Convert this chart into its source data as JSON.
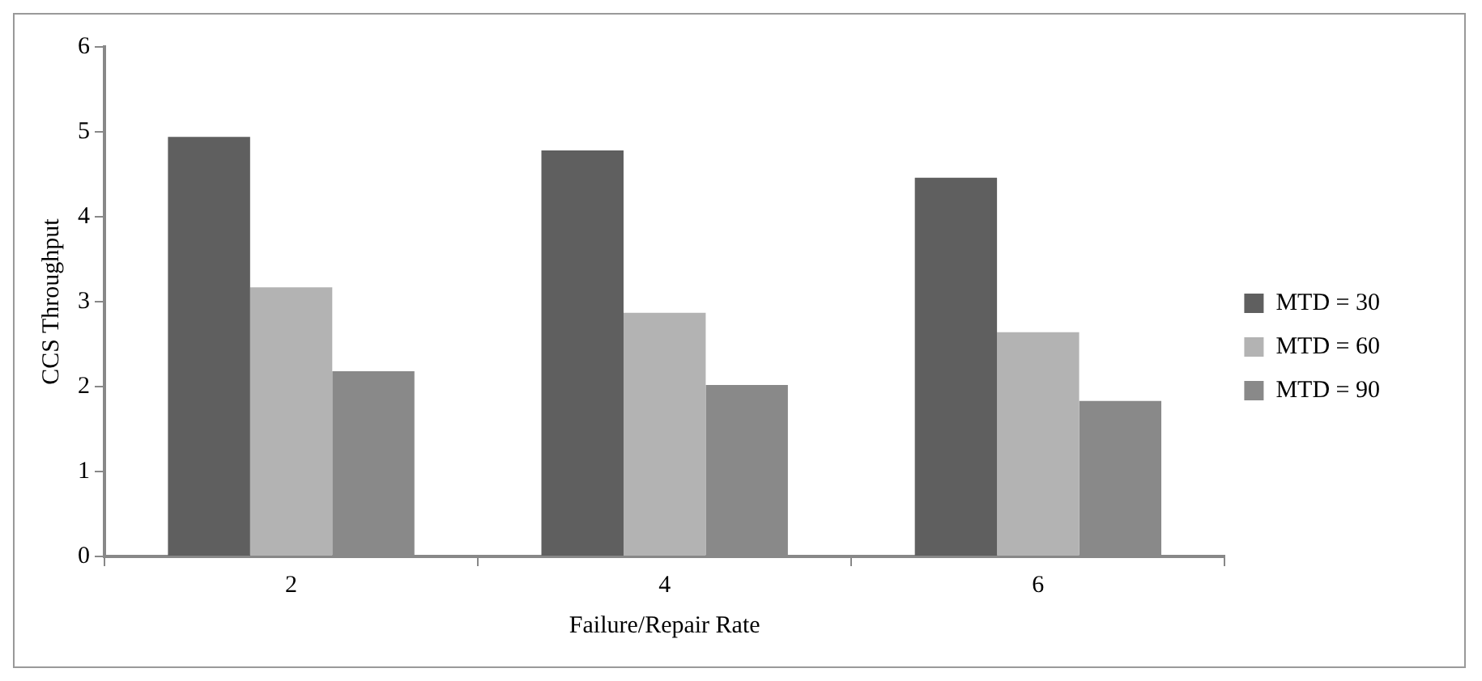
{
  "chart_data": {
    "type": "bar",
    "xlabel": "Failure/Repair Rate",
    "ylabel": "CCS Throughput",
    "categories": [
      "2",
      "4",
      "6"
    ],
    "series": [
      {
        "name": "MTD = 30",
        "color": "#5f5f5f",
        "values": [
          4.94,
          4.78,
          4.46
        ]
      },
      {
        "name": "MTD = 60",
        "color": "#b3b3b3",
        "values": [
          3.17,
          2.87,
          2.64
        ]
      },
      {
        "name": "MTD = 90",
        "color": "#898989",
        "values": [
          2.18,
          2.02,
          1.83
        ]
      }
    ],
    "ylim": [
      0,
      6
    ],
    "yticks": [
      0,
      1,
      2,
      3,
      4,
      5,
      6
    ],
    "grid": false,
    "legend": "right"
  }
}
